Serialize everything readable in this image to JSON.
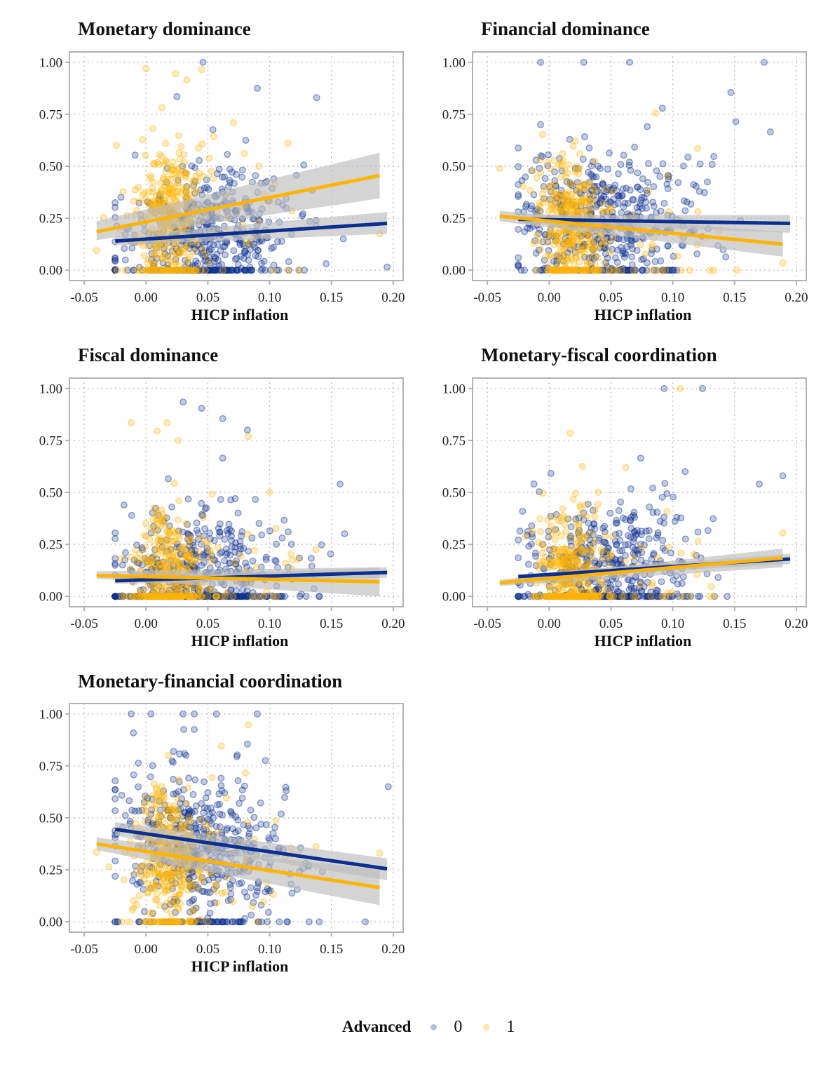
{
  "legend": {
    "title": "Advanced",
    "items": [
      {
        "label": "0",
        "color": "#0a2f8f"
      },
      {
        "label": "1",
        "color": "#ffb400"
      }
    ]
  },
  "colors": {
    "group0": "#0a2f8f",
    "group1": "#ffb400",
    "ribbon": "#bdbdbd",
    "panel_border": "#b3b3b3",
    "grid": "#b0b0b0"
  },
  "chart_data": [
    {
      "type": "scatter",
      "title": "Monetary dominance",
      "xlabel": "HICP inflation",
      "ylabel": "",
      "xlim": [
        -0.062,
        0.208
      ],
      "ylim": [
        -0.05,
        1.05
      ],
      "xticks": [
        "-0.05",
        "0.00",
        "0.05",
        "0.10",
        "0.15",
        "0.20"
      ],
      "yticks": [
        "0.00",
        "0.25",
        "0.50",
        "0.75",
        "1.00"
      ],
      "grid": "dotted",
      "series": [
        {
          "name": "0",
          "fit": {
            "x": [
              -0.025,
              0.195
            ],
            "y": [
              0.14,
              0.225
            ],
            "ci_low": [
              0.12,
              0.175
            ],
            "ci_high": [
              0.165,
              0.28
            ]
          },
          "notable_points": [
            [
              0.046,
              1.0
            ],
            [
              0.09,
              0.875
            ],
            [
              0.138,
              0.83
            ],
            [
              0.025,
              0.835
            ],
            [
              0.195,
              0.015
            ]
          ]
        },
        {
          "name": "1",
          "fit": {
            "x": [
              -0.04,
              0.189
            ],
            "y": [
              0.185,
              0.455
            ],
            "ci_low": [
              0.145,
              0.345
            ],
            "ci_high": [
              0.235,
              0.565
            ]
          },
          "notable_points": [
            [
              0.0,
              0.97
            ],
            [
              0.045,
              0.965
            ],
            [
              0.024,
              0.945
            ],
            [
              0.033,
              0.915
            ],
            [
              -0.04,
              0.095
            ],
            [
              0.189,
              0.175
            ]
          ]
        }
      ]
    },
    {
      "type": "scatter",
      "title": "Financial dominance",
      "xlabel": "HICP inflation",
      "ylabel": "",
      "xlim": [
        -0.062,
        0.208
      ],
      "ylim": [
        -0.05,
        1.05
      ],
      "xticks": [
        "-0.05",
        "0.00",
        "0.05",
        "0.10",
        "0.15",
        "0.20"
      ],
      "yticks": [
        "0.00",
        "0.25",
        "0.50",
        "0.75",
        "1.00"
      ],
      "grid": "dotted",
      "series": [
        {
          "name": "0",
          "fit": {
            "x": [
              -0.025,
              0.195
            ],
            "y": [
              0.245,
              0.225
            ],
            "ci_low": [
              0.225,
              0.18
            ],
            "ci_high": [
              0.265,
              0.265
            ]
          },
          "notable_points": [
            [
              -0.007,
              1.0
            ],
            [
              0.028,
              1.0
            ],
            [
              0.065,
              1.0
            ],
            [
              0.174,
              1.0
            ],
            [
              0.147,
              0.855
            ],
            [
              0.151,
              0.715
            ],
            [
              0.179,
              0.665
            ]
          ]
        },
        {
          "name": "1",
          "fit": {
            "x": [
              -0.04,
              0.189
            ],
            "y": [
              0.26,
              0.125
            ],
            "ci_low": [
              0.235,
              0.065
            ],
            "ci_high": [
              0.285,
              0.185
            ]
          },
          "notable_points": [
            [
              0.086,
              0.755
            ],
            [
              -0.04,
              0.49
            ],
            [
              0.12,
              0.585
            ],
            [
              0.152,
              0.0
            ],
            [
              0.189,
              0.035
            ]
          ]
        }
      ]
    },
    {
      "type": "scatter",
      "title": "Fiscal dominance",
      "xlabel": "HICP inflation",
      "ylabel": "",
      "xlim": [
        -0.062,
        0.208
      ],
      "ylim": [
        -0.05,
        1.05
      ],
      "xticks": [
        "-0.05",
        "0.00",
        "0.05",
        "0.10",
        "0.15",
        "0.20"
      ],
      "yticks": [
        "0.00",
        "0.25",
        "0.50",
        "0.75",
        "1.00"
      ],
      "grid": "dotted",
      "series": [
        {
          "name": "0",
          "fit": {
            "x": [
              -0.025,
              0.195
            ],
            "y": [
              0.075,
              0.115
            ],
            "ci_low": [
              0.06,
              0.09
            ],
            "ci_high": [
              0.09,
              0.14
            ]
          },
          "notable_points": [
            [
              0.03,
              0.935
            ],
            [
              0.045,
              0.905
            ],
            [
              0.062,
              0.855
            ],
            [
              0.082,
              0.8
            ],
            [
              0.062,
              0.665
            ],
            [
              0.157,
              0.54
            ]
          ]
        },
        {
          "name": "1",
          "fit": {
            "x": [
              -0.04,
              0.189
            ],
            "y": [
              0.1,
              0.07
            ],
            "ci_low": [
              0.085,
              0.0
            ],
            "ci_high": [
              0.12,
              0.14
            ]
          },
          "notable_points": [
            [
              -0.012,
              0.835
            ],
            [
              0.017,
              0.835
            ],
            [
              0.009,
              0.795
            ],
            [
              0.026,
              0.75
            ],
            [
              0.1,
              0.5
            ]
          ]
        }
      ]
    },
    {
      "type": "scatter",
      "title": "Monetary-fiscal coordination",
      "xlabel": "HICP inflation",
      "ylabel": "",
      "xlim": [
        -0.062,
        0.208
      ],
      "ylim": [
        -0.05,
        1.05
      ],
      "xticks": [
        "-0.05",
        "0.00",
        "0.05",
        "0.10",
        "0.15",
        "0.20"
      ],
      "yticks": [
        "0.00",
        "0.25",
        "0.50",
        "0.75",
        "1.00"
      ],
      "grid": "dotted",
      "series": [
        {
          "name": "0",
          "fit": {
            "x": [
              -0.025,
              0.195
            ],
            "y": [
              0.095,
              0.18
            ],
            "ci_low": [
              0.085,
              0.155
            ],
            "ci_high": [
              0.105,
              0.205
            ]
          },
          "notable_points": [
            [
              0.093,
              1.0
            ],
            [
              0.124,
              1.0
            ],
            [
              0.074,
              0.665
            ],
            [
              0.11,
              0.6
            ],
            [
              0.189,
              0.58
            ],
            [
              0.17,
              0.54
            ]
          ]
        },
        {
          "name": "1",
          "fit": {
            "x": [
              -0.04,
              0.189
            ],
            "y": [
              0.065,
              0.185
            ],
            "ci_low": [
              0.05,
              0.14
            ],
            "ci_high": [
              0.08,
              0.23
            ]
          },
          "notable_points": [
            [
              0.106,
              1.0
            ],
            [
              0.017,
              0.785
            ],
            [
              0.027,
              0.625
            ],
            [
              0.062,
              0.62
            ],
            [
              0.189,
              0.305
            ]
          ]
        }
      ]
    },
    {
      "type": "scatter",
      "title": "Monetary-financial coordination",
      "xlabel": "HICP inflation",
      "ylabel": "",
      "xlim": [
        -0.062,
        0.208
      ],
      "ylim": [
        -0.05,
        1.05
      ],
      "xticks": [
        "-0.05",
        "0.00",
        "0.05",
        "0.10",
        "0.15",
        "0.20"
      ],
      "yticks": [
        "0.00",
        "0.25",
        "0.50",
        "0.75",
        "1.00"
      ],
      "grid": "dotted",
      "series": [
        {
          "name": "0",
          "fit": {
            "x": [
              -0.025,
              0.195
            ],
            "y": [
              0.445,
              0.255
            ],
            "ci_low": [
              0.415,
              0.2
            ],
            "ci_high": [
              0.48,
              0.305
            ]
          },
          "notable_points": [
            [
              -0.012,
              1.0
            ],
            [
              0.004,
              1.0
            ],
            [
              0.03,
              1.0
            ],
            [
              0.039,
              1.0
            ],
            [
              0.057,
              1.0
            ],
            [
              0.09,
              1.0
            ],
            [
              0.039,
              0.925
            ],
            [
              0.082,
              0.855
            ],
            [
              0.196,
              0.65
            ]
          ]
        },
        {
          "name": "1",
          "fit": {
            "x": [
              -0.04,
              0.189
            ],
            "y": [
              0.375,
              0.165
            ],
            "ci_low": [
              0.345,
              0.08
            ],
            "ci_high": [
              0.405,
              0.25
            ]
          },
          "notable_points": [
            [
              0.061,
              0.845
            ],
            [
              0.018,
              0.8
            ],
            [
              -0.04,
              0.335
            ],
            [
              -0.03,
              0.265
            ],
            [
              0.189,
              0.33
            ]
          ]
        }
      ]
    }
  ]
}
